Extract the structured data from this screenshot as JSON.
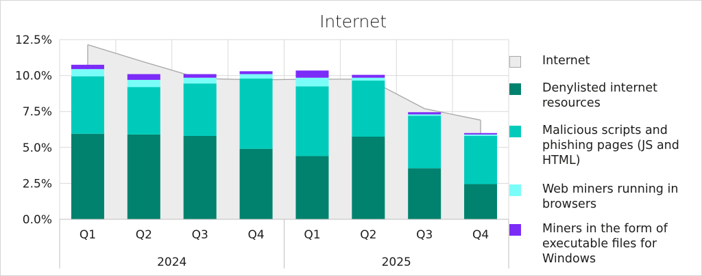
{
  "chart_data": {
    "type": "bar",
    "title": "Internet",
    "categories": [
      "Q1",
      "Q2",
      "Q3",
      "Q4",
      "Q1",
      "Q2",
      "Q3",
      "Q4"
    ],
    "groups": [
      {
        "label": "2024",
        "categories": [
          "Q1",
          "Q2",
          "Q3",
          "Q4"
        ]
      },
      {
        "label": "2025",
        "categories": [
          "Q1",
          "Q2",
          "Q3",
          "Q4"
        ]
      }
    ],
    "ylim": [
      0,
      12.5
    ],
    "yticks": [
      "0.0%",
      "2.5%",
      "5.0%",
      "7.5%",
      "10.0%",
      "12.5%"
    ],
    "grid": true,
    "legend_position": "right",
    "area_series": {
      "name": "Internet",
      "color": "#ececec",
      "values": [
        12.15,
        10.95,
        9.8,
        9.7,
        9.75,
        9.75,
        7.7,
        6.9
      ]
    },
    "series": [
      {
        "name": "Denylisted internet resources",
        "color": "#00826e",
        "values": [
          5.95,
          5.9,
          5.8,
          4.9,
          4.4,
          5.75,
          3.55,
          2.45
        ]
      },
      {
        "name": "Malicious scripts and phishing pages (JS and HTML)",
        "color": "#00cbbb",
        "values": [
          4.0,
          3.3,
          3.65,
          4.9,
          4.85,
          3.9,
          3.65,
          3.35
        ]
      },
      {
        "name": "Web miners running in browsers",
        "color": "#7afdf8",
        "values": [
          0.5,
          0.5,
          0.4,
          0.3,
          0.6,
          0.2,
          0.1,
          0.1
        ]
      },
      {
        "name": "Miners in the form of executable files for Windows",
        "color": "#7b2cf7",
        "values": [
          0.3,
          0.4,
          0.25,
          0.2,
          0.5,
          0.2,
          0.15,
          0.1
        ]
      }
    ]
  }
}
